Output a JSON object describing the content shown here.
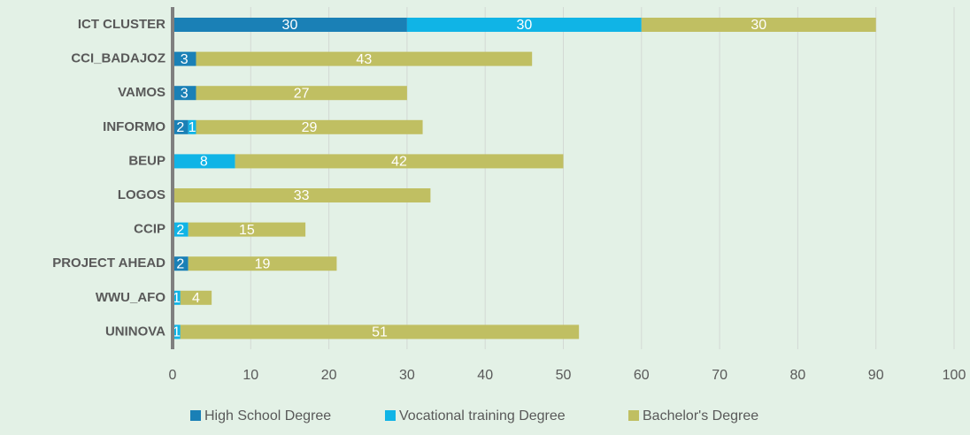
{
  "chart_data": {
    "type": "bar",
    "orientation": "horizontal",
    "stacked": true,
    "categories": [
      "ICT CLUSTER",
      "CCI_BADAJOZ",
      "VAMOS",
      "INFORMO",
      "BEUP",
      "LOGOS",
      "CCIP",
      "PROJECT AHEAD",
      "WWU_AFO",
      "UNINOVA"
    ],
    "series": [
      {
        "name": "High School Degree",
        "color": "#1a80b6",
        "values": [
          30,
          3,
          3,
          2,
          null,
          null,
          null,
          2,
          null,
          null
        ]
      },
      {
        "name": "Vocational training Degree",
        "color": "#10b4e6",
        "values": [
          30,
          null,
          null,
          1,
          8,
          null,
          2,
          null,
          1,
          1
        ]
      },
      {
        "name": "Bachelor's Degree",
        "color": "#c0bf62",
        "values": [
          30,
          43,
          27,
          29,
          42,
          33,
          15,
          19,
          4,
          51
        ]
      }
    ],
    "xlim": [
      0,
      100
    ],
    "xticks": [
      0,
      10,
      20,
      30,
      40,
      50,
      60,
      70,
      80,
      90,
      100
    ],
    "grid": true,
    "legend": "bottom"
  }
}
